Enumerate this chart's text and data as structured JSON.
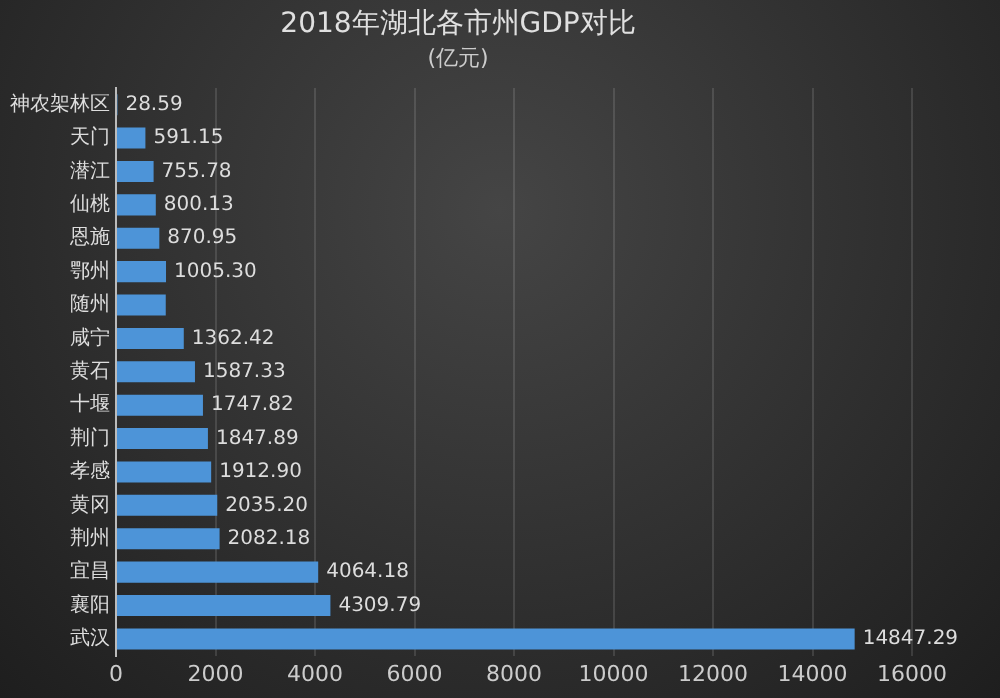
{
  "chart_data": {
    "type": "bar",
    "orientation": "horizontal",
    "title": "2018年湖北各市州GDP对比",
    "subtitle": "(亿元)",
    "categories": [
      "神农架林区",
      "天门",
      "潜江",
      "仙桃",
      "恩施",
      "鄂州",
      "随州",
      "咸宁",
      "黄石",
      "十堰",
      "荆门",
      "孝感",
      "黄冈",
      "荆州",
      "宜昌",
      "襄阳",
      "武汉"
    ],
    "values": [
      28.59,
      591.15,
      755.78,
      800.13,
      870.95,
      1005.3,
      1000,
      1362.42,
      1587.33,
      1747.82,
      1847.89,
      1912.9,
      2035.2,
      2082.18,
      4064.18,
      4309.79,
      14847.29
    ],
    "value_labels": [
      "28.59",
      "591.15",
      "755.78",
      "800.13",
      "870.95",
      "1005.30",
      null,
      "1362.42",
      "1587.33",
      "1747.82",
      "1847.89",
      "1912.90",
      "2035.20",
      "2082.18",
      "4064.18",
      "4309.79",
      "14847.29"
    ],
    "color": "#4d94d8",
    "xlim": [
      0,
      16000
    ],
    "xticks": [
      0,
      2000,
      4000,
      6000,
      8000,
      10000,
      12000,
      14000,
      16000
    ],
    "grid": "x",
    "legend": false
  }
}
